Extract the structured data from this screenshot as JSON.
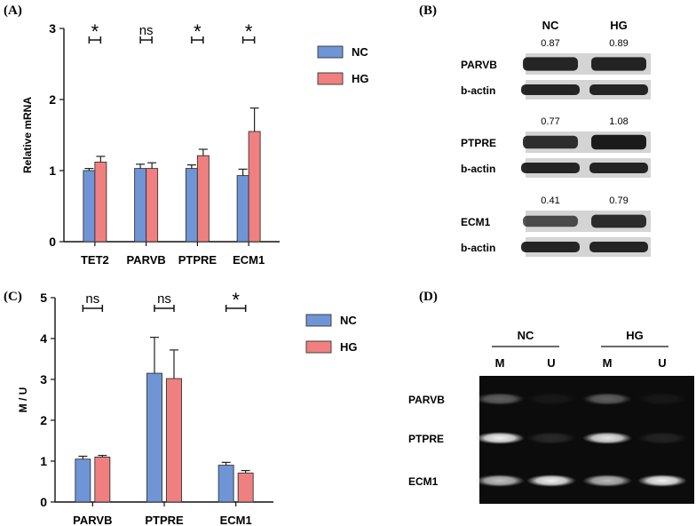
{
  "panels": {
    "A": "(A)",
    "B": "(B)",
    "C": "(C)",
    "D": "(D)"
  },
  "chart_data": [
    {
      "panel": "A",
      "type": "bar",
      "ylabel": "Relative mRNA",
      "categories": [
        "TET2",
        "PARVB",
        "PTPRE",
        "ECM1"
      ],
      "ylim": [
        0,
        3
      ],
      "yticks": [
        0,
        1,
        2,
        3
      ],
      "series": [
        {
          "name": "NC",
          "color": "#6f95d6",
          "values": [
            1.0,
            1.03,
            1.03,
            0.93
          ],
          "errors": [
            0.03,
            0.06,
            0.05,
            0.09
          ]
        },
        {
          "name": "HG",
          "color": "#f08080",
          "values": [
            1.12,
            1.03,
            1.21,
            1.55
          ],
          "errors": [
            0.08,
            0.08,
            0.09,
            0.33
          ]
        }
      ],
      "significance": [
        "*",
        "ns",
        "*",
        "*"
      ],
      "legend_position": "right"
    },
    {
      "panel": "C",
      "type": "bar",
      "ylabel": "M / U",
      "categories": [
        "PARVB",
        "PTPRE",
        "ECM1"
      ],
      "ylim": [
        0,
        5
      ],
      "yticks": [
        0,
        1,
        2,
        3,
        4,
        5
      ],
      "series": [
        {
          "name": "NC",
          "color": "#6f95d6",
          "values": [
            1.05,
            3.15,
            0.9
          ],
          "errors": [
            0.07,
            0.88,
            0.07
          ]
        },
        {
          "name": "HG",
          "color": "#f08080",
          "values": [
            1.1,
            3.02,
            0.71
          ],
          "errors": [
            0.04,
            0.7,
            0.06
          ]
        }
      ],
      "significance": [
        "ns",
        "ns",
        "*"
      ],
      "legend_position": "right"
    }
  ],
  "western_blot": {
    "groups": [
      "NC",
      "HG"
    ],
    "rows": [
      {
        "label": "PARVB",
        "values": [
          "0.87",
          "0.89"
        ],
        "loading": "b-actin"
      },
      {
        "label": "PTPRE",
        "values": [
          "0.77",
          "1.08"
        ],
        "loading": "b-actin"
      },
      {
        "label": "ECM1",
        "values": [
          "0.41",
          "0.79"
        ],
        "loading": "b-actin"
      }
    ]
  },
  "gel": {
    "groups": [
      "NC",
      "HG"
    ],
    "lanes": [
      "M",
      "U",
      "M",
      "U"
    ],
    "rows": [
      {
        "label": "PARVB",
        "intensity": [
          0.35,
          0.05,
          0.35,
          0.05
        ]
      },
      {
        "label": "PTPRE",
        "intensity": [
          0.95,
          0.12,
          0.9,
          0.1
        ]
      },
      {
        "label": "ECM1",
        "intensity": [
          0.75,
          0.95,
          0.72,
          0.95
        ]
      }
    ]
  }
}
